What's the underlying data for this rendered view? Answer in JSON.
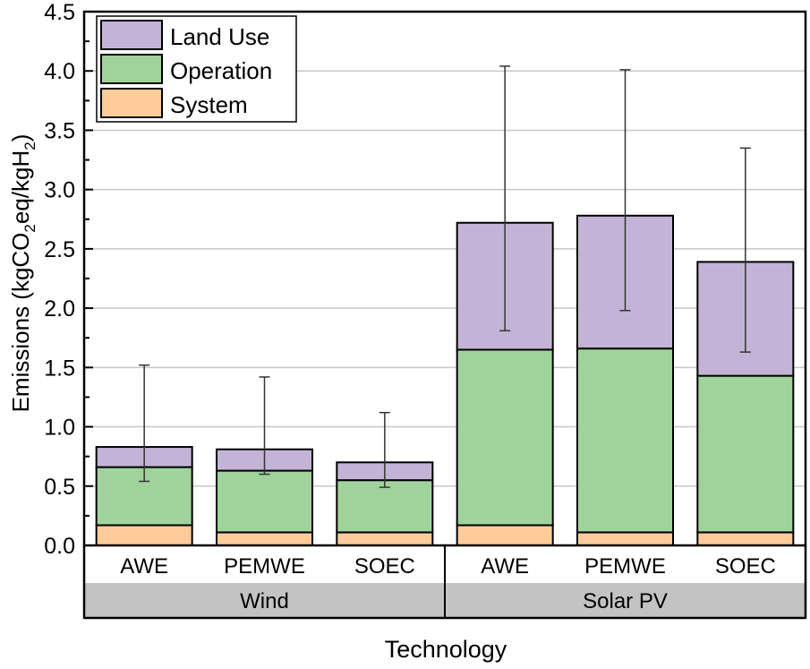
{
  "chart_data": {
    "type": "bar",
    "stacked": true,
    "title": "",
    "xlabel": "Technology",
    "ylabel": "Emissions (kgCO2eq/kgH2)",
    "ylabel_parts": {
      "pre": "Emissions (kgCO",
      "sub1": "2",
      "mid": "eq/kgH",
      "sub2": "2",
      "post": ")"
    },
    "ylim": [
      0,
      4.5
    ],
    "yticks": [
      "0.0",
      "0.5",
      "1.0",
      "1.5",
      "2.0",
      "2.5",
      "3.0",
      "3.5",
      "4.0",
      "4.5"
    ],
    "grid": true,
    "legend_position": "top-left",
    "groups": [
      {
        "name": "Wind",
        "categories": [
          "AWE",
          "PEMWE",
          "SOEC"
        ]
      },
      {
        "name": "Solar PV",
        "categories": [
          "AWE",
          "PEMWE",
          "SOEC"
        ]
      }
    ],
    "categories": [
      "Wind AWE",
      "Wind PEMWE",
      "Wind SOEC",
      "Solar PV AWE",
      "Solar PV PEMWE",
      "Solar PV SOEC"
    ],
    "category_labels": [
      "AWE",
      "PEMWE",
      "SOEC",
      "AWE",
      "PEMWE",
      "SOEC"
    ],
    "series": [
      {
        "name": "System",
        "color": "#FFCB99",
        "values": [
          0.17,
          0.11,
          0.11,
          0.17,
          0.11,
          0.11
        ]
      },
      {
        "name": "Operation",
        "color": "#A0D39B",
        "values": [
          0.49,
          0.52,
          0.44,
          1.48,
          1.55,
          1.32
        ]
      },
      {
        "name": "Land Use",
        "color": "#C3B4D7",
        "values": [
          0.17,
          0.18,
          0.15,
          1.07,
          1.12,
          0.96
        ]
      }
    ],
    "totals": [
      0.83,
      0.81,
      0.7,
      2.72,
      2.78,
      2.39
    ],
    "error_bars": {
      "upper": [
        1.52,
        1.42,
        1.12,
        4.04,
        4.01,
        3.35
      ],
      "lower": [
        0.54,
        0.6,
        0.49,
        1.81,
        1.98,
        1.63
      ]
    },
    "legend": [
      "Land Use",
      "Operation",
      "System"
    ],
    "colors": {
      "group_band": "#C3C3C3",
      "gridline": "#C8C8C8",
      "axis": "#000000"
    }
  }
}
